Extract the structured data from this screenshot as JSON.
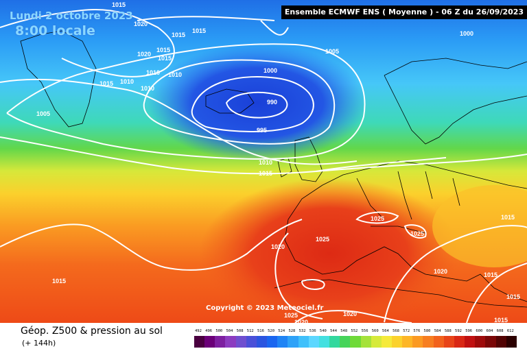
{
  "header": {
    "date": "Lundi 2 octobre 2023",
    "time": "8:00 locale",
    "run_info": "Ensemble ECMWF ENS  ( Moyenne )  -  06 Z du 26/09/2023"
  },
  "copyright": "Copyright © 2023 Meteociel.fr",
  "footer": {
    "title": "Géop. Z500 & pression au sol",
    "subtitle": "(+ 144h)"
  },
  "scale": {
    "labels": [
      "492",
      "496",
      "500",
      "504",
      "508",
      "512",
      "516",
      "520",
      "524",
      "528",
      "532",
      "536",
      "540",
      "544",
      "548",
      "552",
      "556",
      "560",
      "564",
      "568",
      "572",
      "576",
      "580",
      "584",
      "588",
      "592",
      "596",
      "600",
      "604",
      "608",
      "612"
    ],
    "colors": [
      "#4a0040",
      "#6b0078",
      "#7d1fa0",
      "#8c3cc0",
      "#6f4fcf",
      "#4a50d8",
      "#2b55e0",
      "#1a66f0",
      "#1f84f5",
      "#2ea2f8",
      "#3fc0fb",
      "#5cd7ff",
      "#43e0e0",
      "#32d89e",
      "#46d45a",
      "#6fda38",
      "#a5e23a",
      "#d6ea3a",
      "#f5ea3a",
      "#fbd22c",
      "#fdb626",
      "#fb9a22",
      "#f77e20",
      "#f2621c",
      "#e84418",
      "#d92714",
      "#c01010",
      "#9e0a0a",
      "#7a0606",
      "#520303",
      "#2b0000"
    ]
  },
  "isobars": [
    {
      "id": "iso-1015-a",
      "value": "1015"
    },
    {
      "id": "iso-1020-a",
      "value": "1020"
    },
    {
      "id": "iso-1015-b",
      "value": "1015"
    },
    {
      "id": "iso-1015-c",
      "value": "1015"
    },
    {
      "id": "iso-1020-b",
      "value": "1020"
    },
    {
      "id": "iso-1015-d",
      "value": "1015"
    },
    {
      "id": "iso-1015-e",
      "value": "1015"
    },
    {
      "id": "iso-1010-a",
      "value": "1010"
    },
    {
      "id": "iso-1010-b",
      "value": "1010"
    },
    {
      "id": "iso-1015-f",
      "value": "1015"
    },
    {
      "id": "iso-1010-c",
      "value": "1010"
    },
    {
      "id": "iso-1010-d",
      "value": "1010"
    },
    {
      "id": "iso-1005-a",
      "value": "1005"
    },
    {
      "id": "iso-1005-b",
      "value": "1005"
    },
    {
      "id": "iso-1000-a",
      "value": "1000"
    },
    {
      "id": "iso-1000-b",
      "value": "1000"
    },
    {
      "id": "iso-990",
      "value": "990"
    },
    {
      "id": "iso-995",
      "value": "995"
    },
    {
      "id": "iso-1010-e",
      "value": "1010"
    },
    {
      "id": "iso-1015-g",
      "value": "1015"
    },
    {
      "id": "iso-1025-a",
      "value": "1025"
    },
    {
      "id": "iso-1025-b",
      "value": "1025"
    },
    {
      "id": "iso-1025-c",
      "value": "1025"
    },
    {
      "id": "iso-1020-c",
      "value": "1020"
    },
    {
      "id": "iso-1015-h",
      "value": "1015"
    },
    {
      "id": "iso-1020-d",
      "value": "1020"
    },
    {
      "id": "iso-1015-i",
      "value": "1015"
    },
    {
      "id": "iso-1015-j",
      "value": "1015"
    },
    {
      "id": "iso-1015-k",
      "value": "1015"
    },
    {
      "id": "iso-1015-l",
      "value": "1015"
    },
    {
      "id": "iso-1020-e",
      "value": "1020"
    },
    {
      "id": "iso-1020-f",
      "value": "1020"
    },
    {
      "id": "iso-1025-d",
      "value": "1025"
    }
  ]
}
